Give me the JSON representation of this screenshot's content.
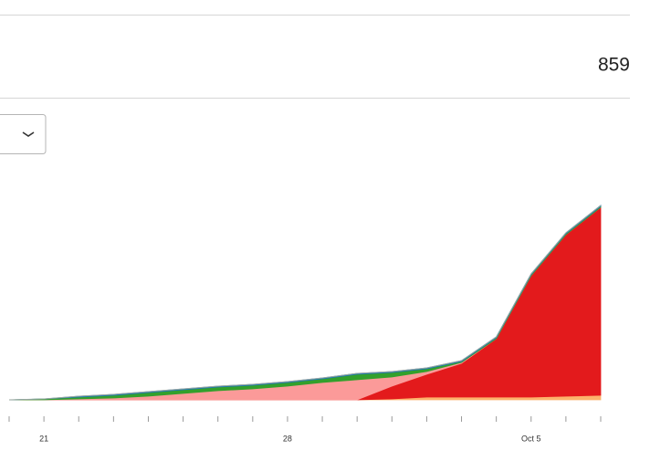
{
  "stat": {
    "value": 859
  },
  "chart_data": {
    "type": "area",
    "stacked": true,
    "categories": [
      null,
      "21",
      null,
      null,
      null,
      null,
      null,
      null,
      "28",
      null,
      null,
      null,
      null,
      null,
      null,
      "Oct 5",
      null,
      null
    ],
    "series": [
      {
        "color": "#fdb46c",
        "values": [
          0,
          0,
          0,
          0,
          0,
          0,
          0,
          0,
          0,
          0,
          0,
          1,
          3,
          3,
          3,
          3,
          4,
          5
        ]
      },
      {
        "color": "#e31a1c",
        "values": [
          0,
          0,
          0,
          0,
          0,
          0,
          0,
          0,
          0,
          0,
          0,
          14,
          25,
          37,
          64,
          133,
          177,
          206
        ]
      },
      {
        "color": "#fb9a99",
        "values": [
          0,
          0,
          1,
          2,
          4,
          7,
          10,
          12,
          15,
          19,
          22,
          10,
          3,
          1,
          0,
          0,
          0,
          0
        ]
      },
      {
        "color": "#33a02c",
        "values": [
          0,
          1,
          2,
          3,
          4,
          4,
          4,
          4,
          4,
          4,
          6,
          5,
          3,
          1,
          1,
          1,
          1,
          1
        ]
      },
      {
        "color": "#1f78b4",
        "values": [
          0,
          0,
          1,
          1,
          1,
          1,
          1,
          1,
          1,
          1,
          1,
          1,
          1,
          1,
          1,
          1,
          1,
          1
        ]
      }
    ]
  }
}
